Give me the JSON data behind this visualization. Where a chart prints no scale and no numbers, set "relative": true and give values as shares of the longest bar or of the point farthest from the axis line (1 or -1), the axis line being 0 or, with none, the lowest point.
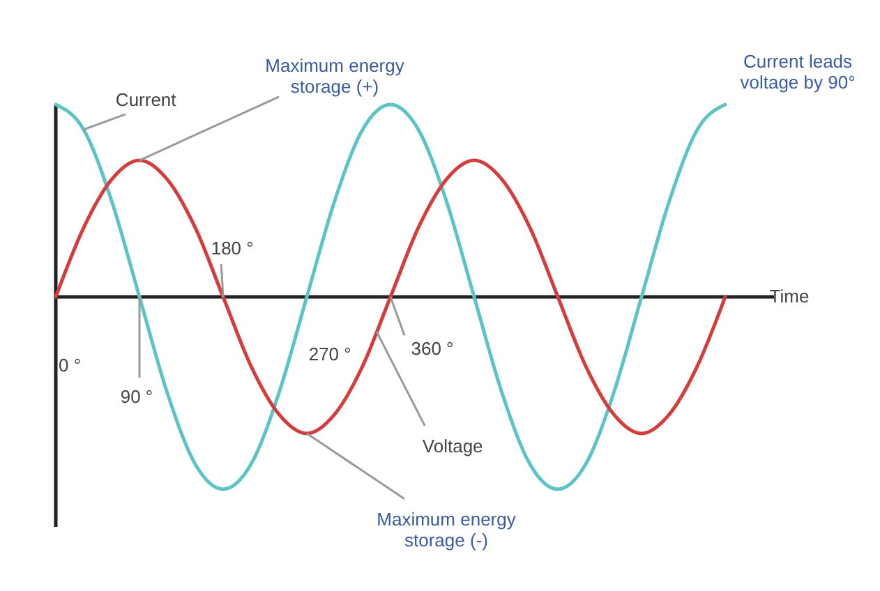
{
  "chart_data": {
    "type": "line",
    "relative": true,
    "xlabel": "Time",
    "categories": [
      null,
      null,
      null,
      null,
      null,
      null,
      null,
      null,
      null,
      null,
      null,
      null,
      null,
      null,
      null,
      null,
      null,
      null,
      null,
      null,
      null,
      null,
      null,
      null,
      null
    ],
    "series": [
      {
        "color": "#5cc4c4",
        "values": [
          1,
          0.87,
          0.5,
          0,
          -0.5,
          -0.87,
          -1,
          -0.87,
          -0.5,
          0,
          0.5,
          0.87,
          1,
          0.87,
          0.5,
          0,
          -0.5,
          -0.87,
          -1,
          -0.87,
          -0.5,
          0,
          0.5,
          0.87,
          1
        ]
      },
      {
        "color": "#d43d3d",
        "values": [
          0,
          0.36,
          0.61,
          0.71,
          0.61,
          0.36,
          0,
          -0.36,
          -0.61,
          -0.71,
          -0.61,
          -0.36,
          0,
          0.36,
          0.61,
          0.71,
          0.61,
          0.36,
          0,
          -0.36,
          -0.61,
          -0.71,
          -0.61,
          -0.36,
          0
        ]
      }
    ],
    "annotations": [
      "Current",
      "Maximum energy\nstorage (+)",
      "Maximum energy\nstorage (-)",
      "Voltage",
      "Current leads\nvoltage by 90°",
      "0 °",
      "90 °",
      "180 °",
      "270 °",
      "360 °"
    ]
  }
}
